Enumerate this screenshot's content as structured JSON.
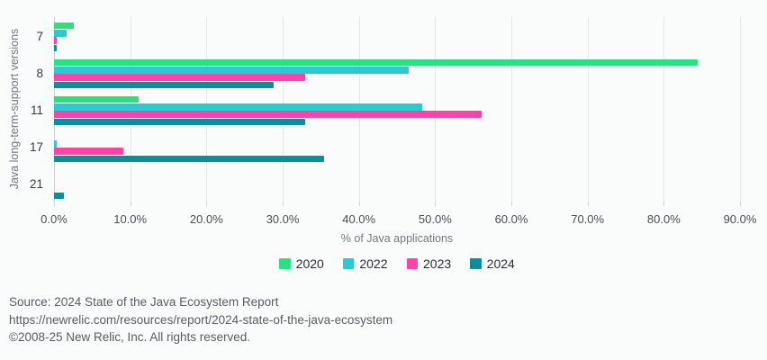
{
  "background": "#fafbfb",
  "chart_data": {
    "type": "bar",
    "orientation": "horizontal",
    "title": "",
    "xlabel": "% of Java applications",
    "ylabel": "Java long-term-support versions",
    "xlim": [
      0,
      90
    ],
    "grid": true,
    "legend_position": "bottom",
    "xticks": [
      "0.0%",
      "10.0%",
      "20.0%",
      "30.0%",
      "40.0%",
      "50.0%",
      "60.0%",
      "70.0%",
      "80.0%",
      "90.0%"
    ],
    "categories": [
      "7",
      "8",
      "11",
      "17",
      "21"
    ],
    "series": [
      {
        "name": "2020",
        "color": "#27e27d",
        "values": [
          2.6,
          84.5,
          11.1,
          null,
          null
        ]
      },
      {
        "name": "2022",
        "color": "#2bc9d2",
        "values": [
          1.7,
          46.5,
          48.3,
          0.4,
          null
        ]
      },
      {
        "name": "2023",
        "color": "#fc42ab",
        "values": [
          0.4,
          33.0,
          56.1,
          9.1,
          null
        ]
      },
      {
        "name": "2024",
        "color": "#0b8e9c",
        "values": [
          0.3,
          28.8,
          32.9,
          35.4,
          1.3
        ]
      }
    ]
  },
  "footer": {
    "source": "Source: 2024 State of the Java Ecosystem Report",
    "url": "https://newrelic.com/resources/report/2024-state-of-the-java-ecosystem",
    "copyright": "©2008-25 New Relic, Inc. All rights reserved."
  }
}
